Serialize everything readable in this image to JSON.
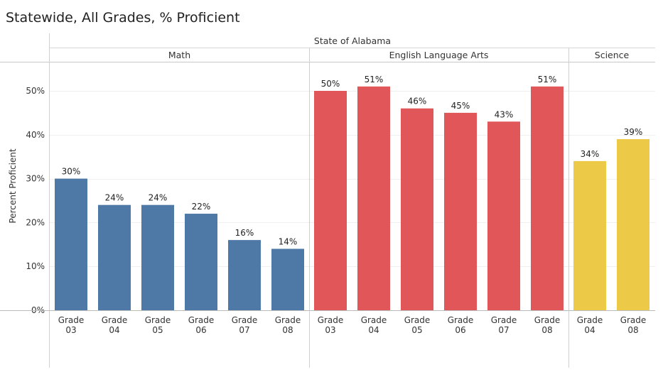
{
  "chart_data": {
    "type": "bar",
    "title": "Statewide, All Grades, % Proficient",
    "top_header": "State of Alabama",
    "ylabel": "Percent Proficient",
    "ylim": [
      0,
      0.56
    ],
    "yticks": [
      "0%",
      "10%",
      "20%",
      "30%",
      "40%",
      "50%"
    ],
    "panels": [
      {
        "name": "Math",
        "color": "#4e79a7",
        "categories": [
          "Grade 03",
          "Grade 04",
          "Grade 05",
          "Grade 06",
          "Grade 07",
          "Grade 08"
        ],
        "values": [
          0.3,
          0.24,
          0.24,
          0.22,
          0.16,
          0.14
        ],
        "labels": [
          "30%",
          "24%",
          "24%",
          "22%",
          "16%",
          "14%"
        ]
      },
      {
        "name": "English Language Arts",
        "color": "#e15759",
        "categories": [
          "Grade 03",
          "Grade 04",
          "Grade 05",
          "Grade 06",
          "Grade 07",
          "Grade 08"
        ],
        "values": [
          0.5,
          0.51,
          0.46,
          0.45,
          0.43,
          0.51
        ],
        "labels": [
          "50%",
          "51%",
          "46%",
          "45%",
          "43%",
          "51%"
        ]
      },
      {
        "name": "Science",
        "color": "#edc948",
        "categories": [
          "Grade 04",
          "Grade 08"
        ],
        "values": [
          0.34,
          0.39
        ],
        "labels": [
          "34%",
          "39%"
        ]
      }
    ]
  }
}
